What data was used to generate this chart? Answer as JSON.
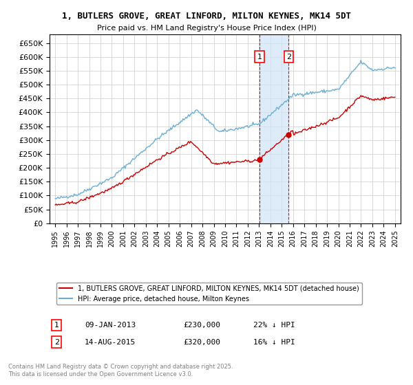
{
  "title_line1": "1, BUTLERS GROVE, GREAT LINFORD, MILTON KEYNES, MK14 5DT",
  "title_line2": "Price paid vs. HM Land Registry's House Price Index (HPI)",
  "legend_line1": "1, BUTLERS GROVE, GREAT LINFORD, MILTON KEYNES, MK14 5DT (detached house)",
  "legend_line2": "HPI: Average price, detached house, Milton Keynes",
  "footnote": "Contains HM Land Registry data © Crown copyright and database right 2025.\nThis data is licensed under the Open Government Licence v3.0.",
  "transaction1_label": "1",
  "transaction1_date": "09-JAN-2013",
  "transaction1_price": "£230,000",
  "transaction1_hpi": "22% ↓ HPI",
  "transaction2_label": "2",
  "transaction2_date": "14-AUG-2015",
  "transaction2_price": "£320,000",
  "transaction2_hpi": "16% ↓ HPI",
  "transaction1_x": 2013.03,
  "transaction2_x": 2015.62,
  "transaction1_y": 230000,
  "transaction2_y": 320000,
  "hpi_color": "#6baed6",
  "price_color": "#cc0000",
  "shade_color": "#d0e4f7",
  "vline_color": "#ff0000",
  "grid_color": "#cccccc",
  "background_color": "#ffffff",
  "ylim": [
    0,
    680000
  ],
  "xlim_start": 1994.5,
  "xlim_end": 2025.5
}
